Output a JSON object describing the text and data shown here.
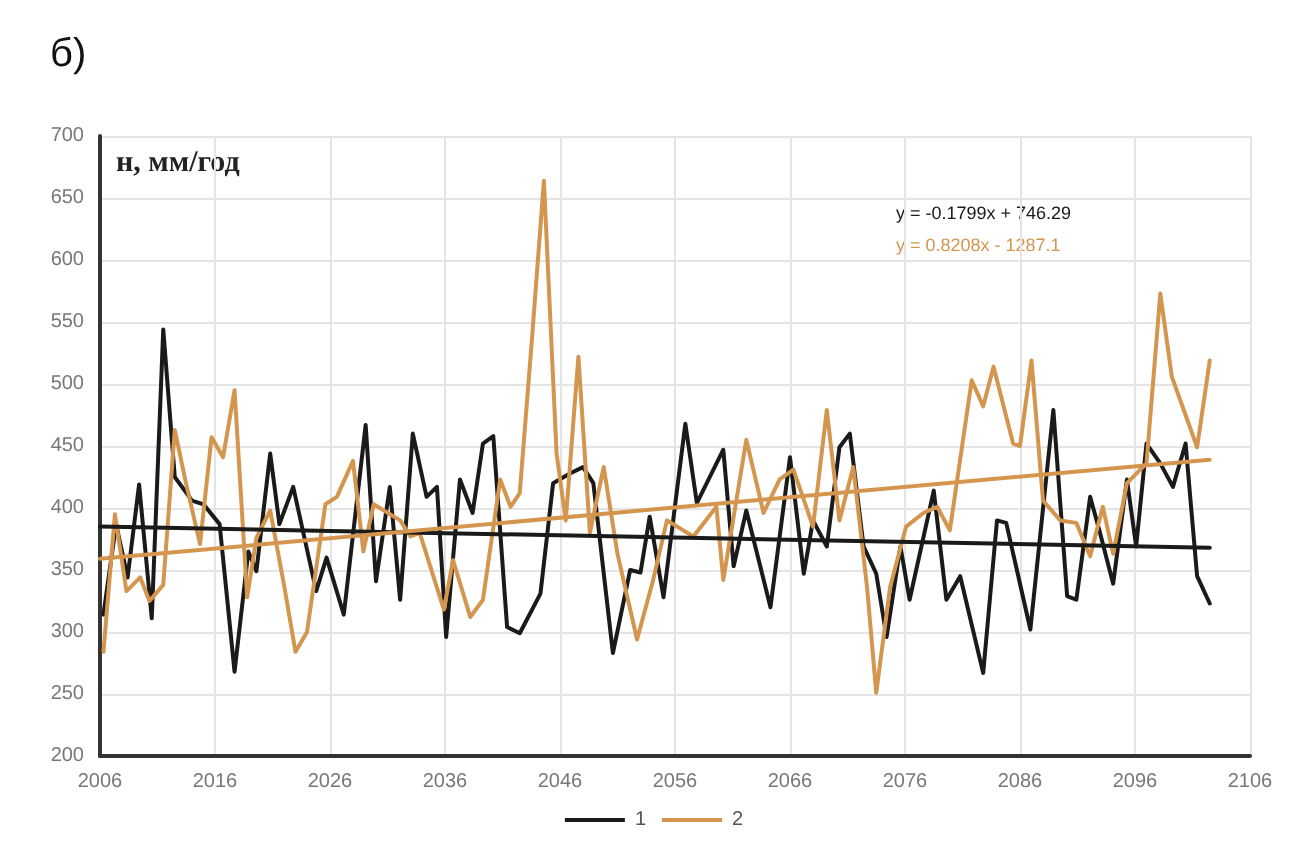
{
  "chart_data": {
    "type": "line",
    "title": "б)",
    "ylabel": "н, мм/год",
    "annotations": [
      "y = -0.1799x + 746.29",
      "y = 0.8208x - 1287.1"
    ],
    "xlim": [
      2006,
      2106
    ],
    "xticks": [
      2006,
      2016,
      2026,
      2036,
      2046,
      2056,
      2066,
      2076,
      2086,
      2096,
      2106
    ],
    "ylim": [
      200,
      700
    ],
    "yticks": [
      200,
      250,
      300,
      350,
      400,
      450,
      500,
      550,
      600,
      650,
      700
    ],
    "grid": true,
    "legend": "bottom",
    "marker": "none",
    "line_style": "solid",
    "series": [
      {
        "name": "1",
        "color": "#1a1a1a",
        "x": [
          2006.3,
          2007.4,
          2008.4,
          2009.4,
          2010.5,
          2011.5,
          2012.5,
          2014,
          2015,
          2016.4,
          2017.7,
          2018.9,
          2019.6,
          2020.8,
          2021.6,
          2022.8,
          2024.8,
          2025.7,
          2027.2,
          2029.1,
          2030,
          2031.2,
          2032.1,
          2033.2,
          2034.4,
          2035.3,
          2036.1,
          2037.3,
          2038.4,
          2039.3,
          2040.2,
          2041.4,
          2042.5,
          2044.3,
          2045.4,
          2046.9,
          2048,
          2048.9,
          2050.6,
          2052.1,
          2053,
          2053.8,
          2055,
          2056.9,
          2057.9,
          2060.2,
          2061.1,
          2062.2,
          2064.3,
          2066,
          2067.2,
          2068,
          2069.2,
          2070.3,
          2071.2,
          2072.4,
          2073.5,
          2074.4,
          2075.6,
          2076.4,
          2078.5,
          2079.6,
          2080.8,
          2082.8,
          2084,
          2084.8,
          2086.9,
          2088.9,
          2090.1,
          2090.9,
          2092.1,
          2092.9,
          2094.1,
          2095.3,
          2096.1,
          2097,
          2098.2,
          2099.3,
          2100.4,
          2101.4,
          2102.5
        ],
        "values": [
          314,
          387,
          344,
          419,
          311,
          544,
          425,
          406,
          403,
          387,
          268,
          365,
          349,
          444,
          387,
          417,
          333,
          360,
          314,
          467,
          341,
          417,
          326,
          460,
          409,
          417,
          296,
          423,
          396,
          452,
          458,
          304,
          299,
          331,
          420,
          428,
          433,
          420,
          283,
          350,
          348,
          393,
          328,
          468,
          404,
          447,
          353,
          398,
          320,
          441,
          347,
          390,
          369,
          449,
          460,
          369,
          347,
          296,
          369,
          326,
          414,
          326,
          345,
          267,
          390,
          388,
          302,
          479,
          329,
          326,
          409,
          382,
          339,
          423,
          369,
          452,
          436,
          417,
          452,
          345,
          323
        ]
      },
      {
        "name": "2",
        "color": "#d4964f",
        "x": [
          2006.3,
          2007.3,
          2008.3,
          2009.5,
          2010.3,
          2011.5,
          2012.5,
          2013.5,
          2014.7,
          2015.7,
          2016.7,
          2017.7,
          2018.8,
          2019.6,
          2020.8,
          2022,
          2023,
          2024,
          2025.6,
          2026.6,
          2028,
          2028.9,
          2029.8,
          2032.1,
          2033,
          2033.8,
          2035.9,
          2036.7,
          2038.2,
          2039.3,
          2040.8,
          2041.7,
          2042.5,
          2043.6,
          2044.6,
          2045.7,
          2046.5,
          2047.6,
          2048.6,
          2049.8,
          2051,
          2052.7,
          2054.1,
          2055.3,
          2057.6,
          2059.6,
          2060.2,
          2062.2,
          2063.7,
          2065.1,
          2066.3,
          2068,
          2069.2,
          2070.3,
          2071.5,
          2072.7,
          2073.5,
          2074.7,
          2076.1,
          2077.6,
          2078.8,
          2079.9,
          2081.8,
          2082.8,
          2083.7,
          2085.4,
          2086,
          2087,
          2088,
          2089.5,
          2090.9,
          2092.1,
          2093.2,
          2094.1,
          2095.3,
          2097,
          2098.2,
          2099.2,
          2101.4,
          2102.5
        ],
        "values": [
          284,
          395,
          333,
          344,
          325,
          338,
          463,
          419,
          371,
          457,
          441,
          495,
          328,
          376,
          398,
          338,
          284,
          300,
          403,
          409,
          438,
          365,
          403,
          390,
          377,
          380,
          318,
          358,
          312,
          326,
          423,
          401,
          412,
          541,
          664,
          444,
          390,
          522,
          380,
          433,
          363,
          294,
          342,
          390,
          377,
          401,
          342,
          455,
          396,
          423,
          431,
          385,
          479,
          390,
          433,
          336,
          251,
          336,
          385,
          396,
          401,
          382,
          503,
          482,
          514,
          452,
          450,
          519,
          406,
          390,
          388,
          361,
          401,
          363,
          420,
          436,
          573,
          506,
          449,
          519
        ]
      },
      {
        "color": "#1a1a1a",
        "x": [
          2006,
          2102.5
        ],
        "values": [
          385,
          368
        ]
      },
      {
        "color": "#d4964f",
        "x": [
          2006,
          2102.5
        ],
        "values": [
          359,
          439
        ]
      }
    ]
  }
}
